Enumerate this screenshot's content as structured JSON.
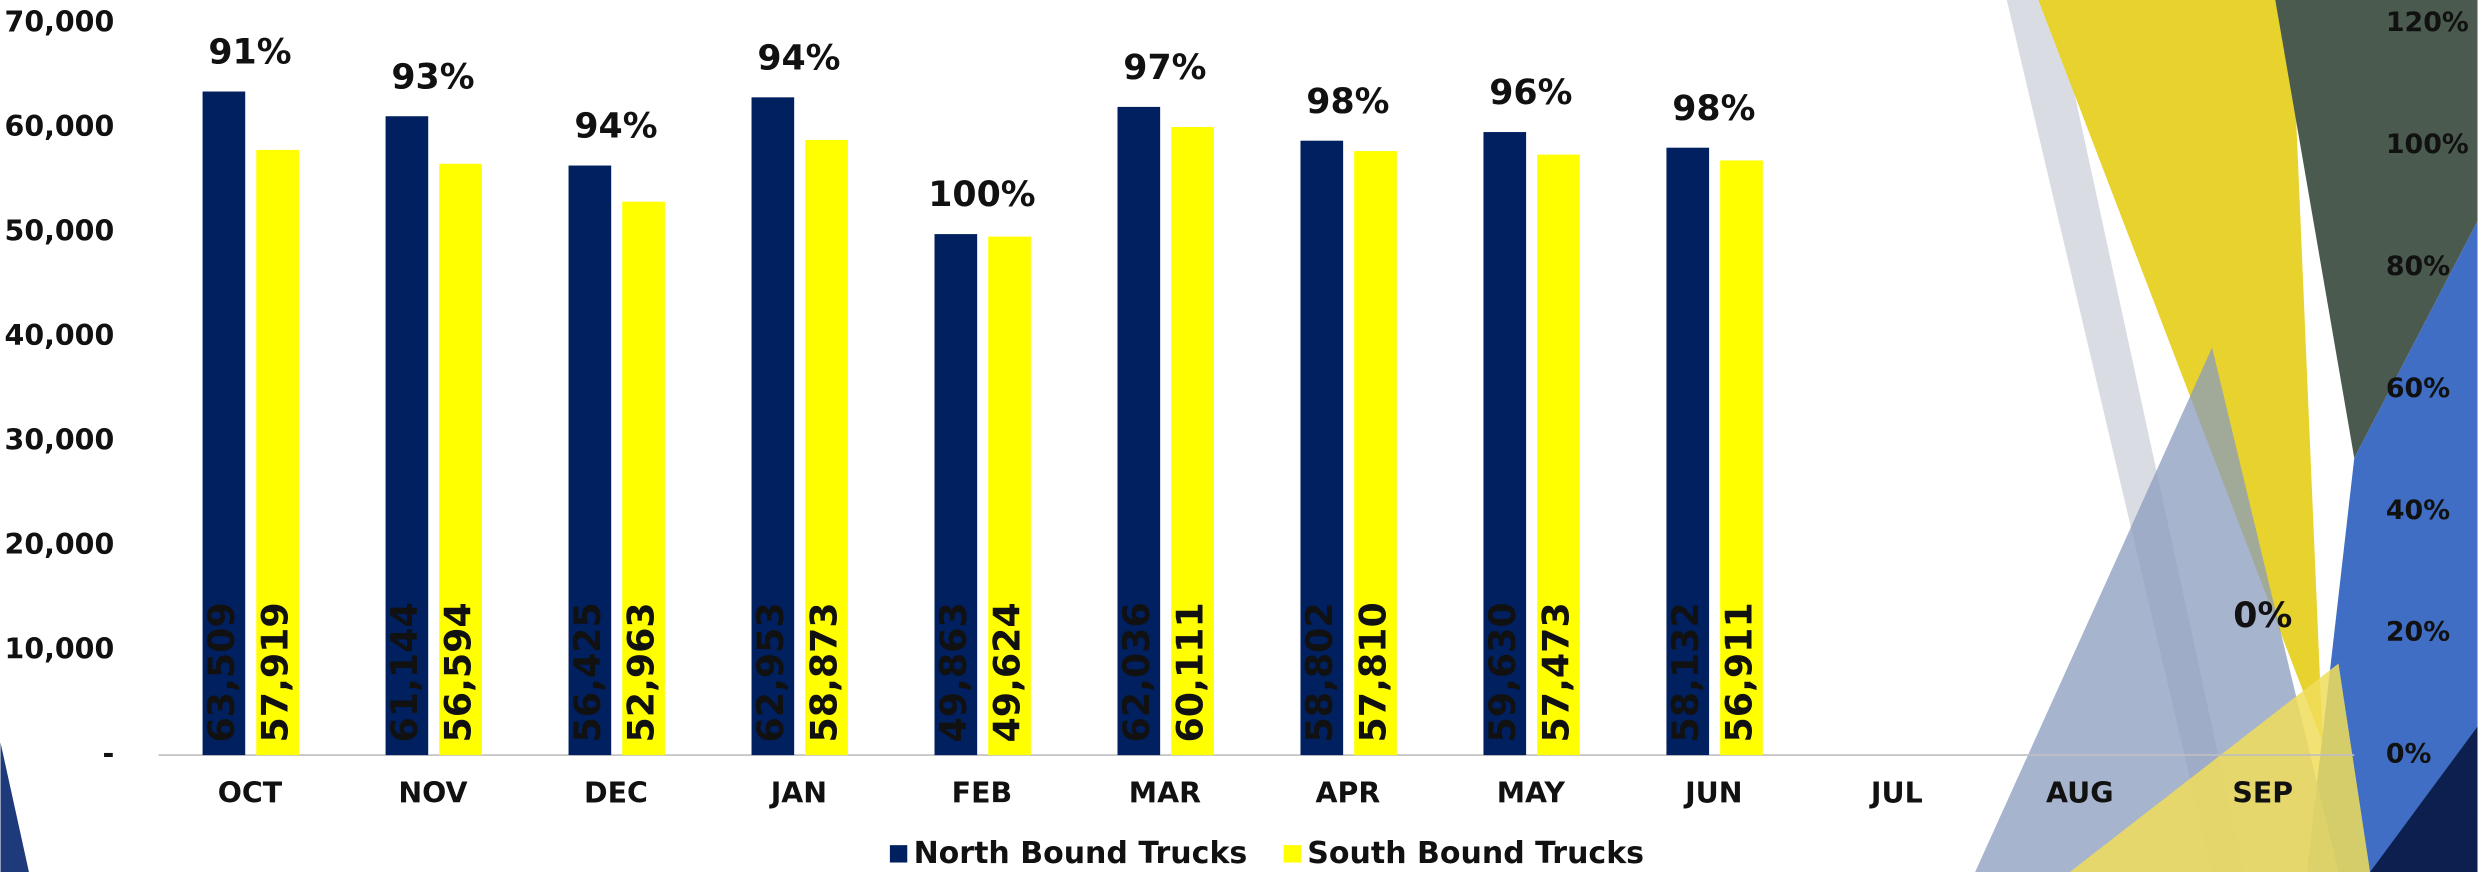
{
  "chart_data": {
    "type": "bar",
    "categories": [
      "OCT",
      "NOV",
      "DEC",
      "JAN",
      "FEB",
      "MAR",
      "APR",
      "MAY",
      "JUN",
      "JUL",
      "AUG",
      "SEP"
    ],
    "series": [
      {
        "name": "North Bound Trucks",
        "color": "#002060",
        "values": [
          63509,
          61144,
          56425,
          62953,
          49863,
          62036,
          58802,
          59630,
          58132,
          null,
          null,
          null
        ],
        "value_labels": [
          "63,509",
          "61,144",
          "56,425",
          "62,953",
          "49,863",
          "62,036",
          "58,802",
          "59,630",
          "58,132",
          null,
          null,
          null
        ]
      },
      {
        "name": "South Bound Trucks",
        "color": "#ffff00",
        "values": [
          57919,
          56594,
          52963,
          58873,
          49624,
          60111,
          57810,
          57473,
          56911,
          null,
          null,
          null
        ],
        "value_labels": [
          "57,919",
          "56,594",
          "52,963",
          "58,873",
          "49,624",
          "60,111",
          "57,810",
          "57,473",
          "56,911",
          null,
          null,
          null
        ]
      },
      {
        "axis": "y2",
        "values": [
          91,
          93,
          94,
          94,
          100,
          97,
          98,
          96,
          98,
          null,
          null,
          0
        ],
        "value_labels": [
          "91%",
          "93%",
          "94%",
          "94%",
          "100%",
          "97%",
          "98%",
          "96%",
          "98%",
          null,
          null,
          "0%"
        ]
      }
    ],
    "ylim": [
      0,
      70000
    ],
    "yticks": [
      {
        "value": 0,
        "label": "-"
      },
      {
        "value": 10000,
        "label": "10,000"
      },
      {
        "value": 20000,
        "label": "20,000"
      },
      {
        "value": 30000,
        "label": "30,000"
      },
      {
        "value": 40000,
        "label": "40,000"
      },
      {
        "value": 50000,
        "label": "50,000"
      },
      {
        "value": 60000,
        "label": "60,000"
      },
      {
        "value": 70000,
        "label": "70,000"
      }
    ],
    "y2lim": [
      0,
      120
    ],
    "y2ticks": [
      {
        "value": 0,
        "label": "0%"
      },
      {
        "value": 20,
        "label": "20%"
      },
      {
        "value": 40,
        "label": "40%"
      },
      {
        "value": 60,
        "label": "60%"
      },
      {
        "value": 80,
        "label": "80%"
      },
      {
        "value": 100,
        "label": "100%"
      },
      {
        "value": 120,
        "label": "120%"
      }
    ],
    "legend": "bottom"
  }
}
